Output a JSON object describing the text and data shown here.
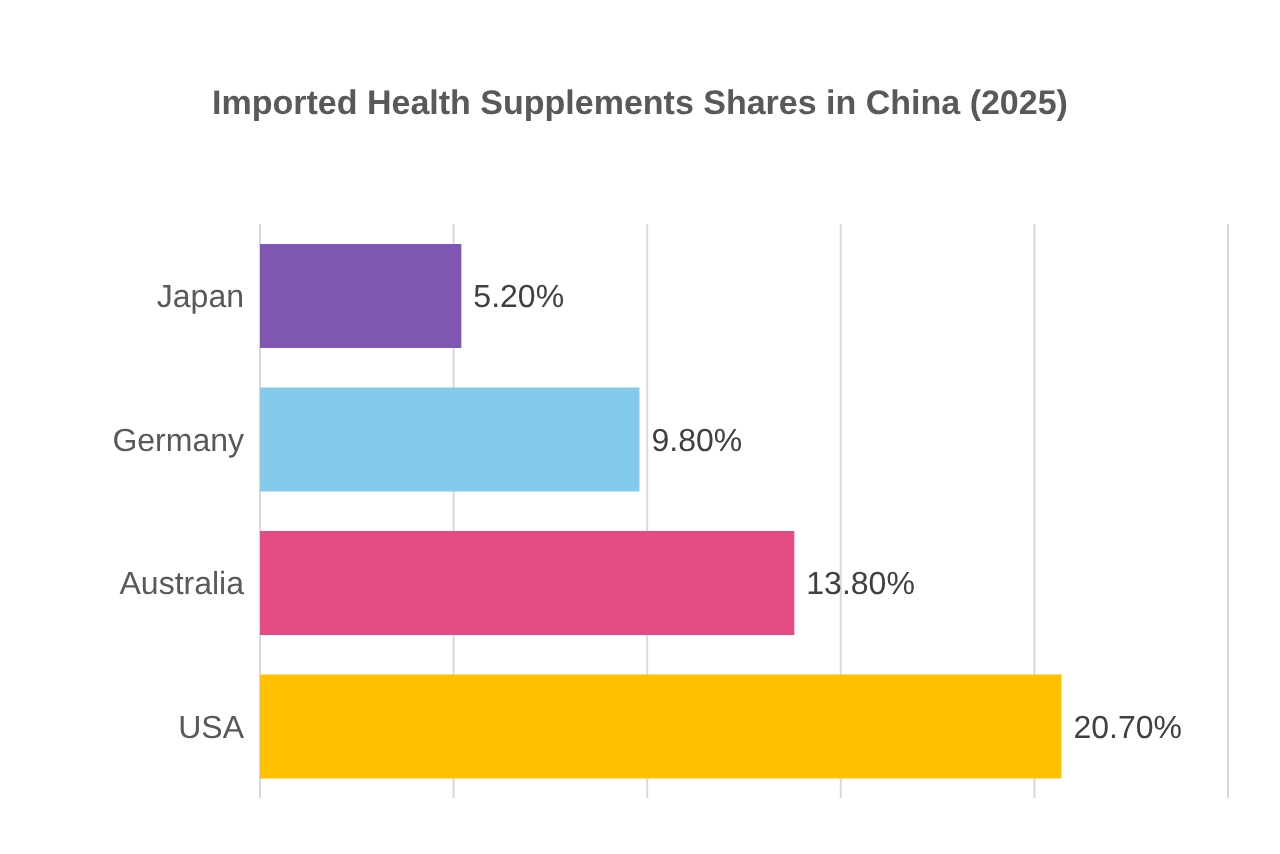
{
  "chart_data": {
    "type": "bar",
    "orientation": "horizontal",
    "title": "Imported Health Supplements Shares in China (2025)",
    "categories": [
      "Japan",
      "Germany",
      "Australia",
      "USA"
    ],
    "values": [
      5.2,
      9.8,
      13.8,
      20.7
    ],
    "colors": [
      "#7f56b0",
      "#84cbeb",
      "#e54c86",
      "#ffc000"
    ],
    "value_labels": [
      "5.20%",
      "9.80%",
      "13.80%",
      "20.70%"
    ],
    "grid": "x",
    "tick_labels": "y"
  }
}
